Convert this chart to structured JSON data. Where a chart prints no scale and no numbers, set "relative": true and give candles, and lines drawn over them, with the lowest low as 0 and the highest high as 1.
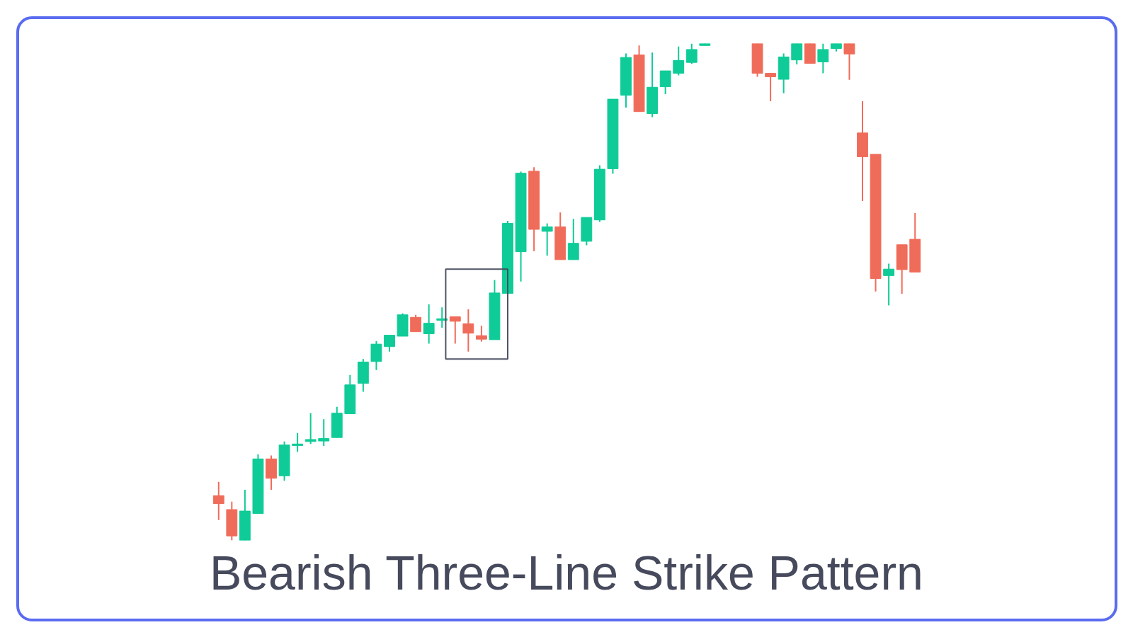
{
  "chart_data": {
    "type": "candlestick",
    "title": "Bearish Three-Line Strike Pattern",
    "relative": true,
    "categories": [
      null,
      null,
      null,
      null,
      null,
      null,
      null,
      null,
      null,
      null,
      null,
      null,
      null,
      null,
      null,
      null,
      null,
      null,
      null,
      null,
      null,
      null,
      null,
      null,
      null,
      null,
      null,
      null,
      null,
      null,
      null,
      null,
      null,
      null,
      null,
      null,
      null,
      null,
      null,
      null,
      null,
      null,
      null,
      null,
      null,
      null,
      null,
      null,
      null,
      null,
      null,
      null,
      null,
      null
    ],
    "ohlc": [
      [
        0.09,
        0.118,
        0.041,
        0.074
      ],
      [
        0.062,
        0.078,
        0,
        0.009
      ],
      [
        0,
        0.102,
        0,
        0.059
      ],
      [
        0.054,
        0.173,
        0.054,
        0.164
      ],
      [
        0.164,
        0.171,
        0.102,
        0.125
      ],
      [
        0.13,
        0.199,
        0.12,
        0.192
      ],
      [
        0.191,
        0.216,
        0.178,
        0.194
      ],
      [
        0.199,
        0.256,
        0.194,
        0.203
      ],
      [
        0.2,
        0.244,
        0.19,
        0.205
      ],
      [
        0.207,
        0.269,
        0.207,
        0.256
      ],
      [
        0.255,
        0.333,
        0.255,
        0.313
      ],
      [
        0.316,
        0.365,
        0.299,
        0.359
      ],
      [
        0.36,
        0.401,
        0.343,
        0.395
      ],
      [
        0.39,
        0.413,
        0.38,
        0.413
      ],
      [
        0.411,
        0.457,
        0.411,
        0.454
      ],
      [
        0.449,
        0.454,
        0.42,
        0.42
      ],
      [
        0.416,
        0.475,
        0.396,
        0.437
      ],
      [
        0.443,
        0.469,
        0.428,
        0.446
      ],
      [
        0.45,
        0.45,
        0.396,
        0.441
      ],
      [
        0.436,
        0.465,
        0.38,
        0.417
      ],
      [
        0.412,
        0.432,
        0.4,
        0.405
      ],
      [
        0.404,
        0.524,
        0.404,
        0.498
      ],
      [
        0.497,
        0.643,
        0.497,
        0.638
      ],
      [
        0.581,
        0.742,
        0.521,
        0.739
      ],
      [
        0.743,
        0.751,
        0.582,
        0.626
      ],
      [
        0.622,
        0.638,
        0.573,
        0.631
      ],
      [
        0.631,
        0.66,
        0.565,
        0.565
      ],
      [
        0.565,
        0.647,
        0.565,
        0.598
      ],
      [
        0.602,
        0.65,
        0.594,
        0.65
      ],
      [
        0.645,
        0.755,
        0.641,
        0.747
      ],
      [
        0.748,
        0.888,
        0.738,
        0.888
      ],
      [
        0.896,
        0.98,
        0.871,
        0.972
      ],
      [
        0.977,
        0.996,
        0.863,
        0.863
      ],
      [
        0.859,
        0.982,
        0.852,
        0.912
      ],
      [
        0.913,
        0.945,
        0.898,
        0.945
      ],
      [
        0.94,
        0.994,
        0.936,
        0.966
      ],
      [
        0.962,
        1,
        0.959,
        0.988
      ],
      [
        0.996,
        1,
        0.996,
        1
      ],
      null,
      null,
      null,
      [
        1,
        1,
        0.933,
        0.94
      ],
      [
        0.94,
        0.94,
        0.884,
        0.933
      ],
      [
        0.928,
        0.98,
        0.9,
        0.973
      ],
      [
        0.967,
        1,
        0.958,
        1
      ],
      [
        1,
        1,
        0.96,
        0.96
      ],
      [
        0.963,
        1,
        0.94,
        0.988
      ],
      [
        0.99,
        1,
        0.984,
        1
      ],
      [
        1,
        1,
        0.927,
        0.979
      ],
      [
        0.82,
        0.884,
        0.683,
        0.772
      ],
      [
        0.777,
        0.777,
        0.501,
        0.527
      ],
      [
        0.533,
        0.557,
        0.473,
        0.546
      ],
      [
        0.595,
        0.595,
        0.496,
        0.545
      ],
      [
        0.606,
        0.659,
        0.54,
        0.54
      ]
    ],
    "colors": [
      "#f06c5a",
      "#f06c5a",
      "#0fcb97",
      "#0fcb97",
      "#f06c5a",
      "#0fcb97",
      "#0fcb97",
      "#0fcb97",
      "#0fcb97",
      "#0fcb97",
      "#0fcb97",
      "#0fcb97",
      "#0fcb97",
      "#0fcb97",
      "#0fcb97",
      "#f06c5a",
      "#0fcb97",
      "#0fcb97",
      "#f06c5a",
      "#f06c5a",
      "#f06c5a",
      "#0fcb97",
      "#0fcb97",
      "#0fcb97",
      "#f06c5a",
      "#0fcb97",
      "#f06c5a",
      "#0fcb97",
      "#0fcb97",
      "#0fcb97",
      "#0fcb97",
      "#0fcb97",
      "#f06c5a",
      "#0fcb97",
      "#0fcb97",
      "#0fcb97",
      "#0fcb97",
      "#0fcb97",
      null,
      null,
      null,
      "#f06c5a",
      "#f06c5a",
      "#0fcb97",
      "#0fcb97",
      "#f06c5a",
      "#0fcb97",
      "#0fcb97",
      "#f06c5a",
      "#f06c5a",
      "#f06c5a",
      "#0fcb97",
      "#f06c5a",
      "#f06c5a"
    ]
  }
}
